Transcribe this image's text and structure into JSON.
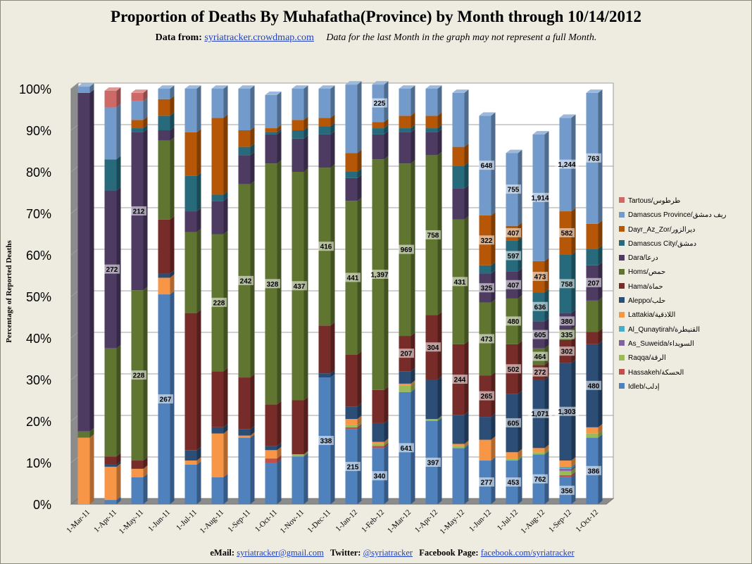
{
  "header": {
    "title": "Proportion of Deaths By Muhafatha(Province) by Month through 10/14/2012",
    "data_from_label": "Data from:",
    "data_from_link": "syriatracker.crowdmap.com",
    "note": "Data for the last Month in the graph may not represent a full Month."
  },
  "footer": {
    "email_label": "eMail:",
    "email": "syriatracker@gmail.com",
    "twitter_label": "Twitter:",
    "twitter": "@syriatracker",
    "facebook_label": "Facebook  Page:",
    "facebook": "facebook.com/syriatracker"
  },
  "chart_data": {
    "type": "bar",
    "stacked": true,
    "percent": true,
    "title": "Proportion of Deaths By Muhafatha(Province) by Month through 10/14/2012",
    "xlabel": "",
    "ylabel": "Percentage of Reported Deaths",
    "ylim": [
      0,
      100
    ],
    "yticks": [
      "0%",
      "10%",
      "20%",
      "30%",
      "40%",
      "50%",
      "60%",
      "70%",
      "80%",
      "90%",
      "100%"
    ],
    "grid": true,
    "legend_position": "right",
    "categories": [
      "1-Mar-11",
      "1-Apr-11",
      "1-May-11",
      "1-Jun-11",
      "1-Jul-11",
      "1-Aug-11",
      "1-Sep-11",
      "1-Oct-11",
      "1-Nov-11",
      "1-Dec-11",
      "1-Jan-12",
      "1-Feb-12",
      "1-Mar-12",
      "1-Apr-12",
      "1-May-12",
      "1-Jun-12",
      "1-Jul-12",
      "1-Aug-12",
      "1-Sep-12",
      "1-Oct-12"
    ],
    "series": [
      {
        "name": "Idleb/إدلب",
        "color": "#4F81BD",
        "values": [
          0,
          1,
          6.5,
          50.5,
          9.5,
          6.5,
          16,
          10,
          11.5,
          30.5,
          18,
          13.5,
          27,
          20,
          13.5,
          10.5,
          10.5,
          12,
          6.5,
          16
        ]
      },
      {
        "name": "Hassakeh/الحسكة",
        "color": "#C0504D",
        "values": [
          0,
          0,
          0,
          0,
          0,
          0,
          0,
          1,
          0,
          0,
          0.5,
          0.5,
          0,
          0,
          0,
          0,
          0,
          0,
          0.5,
          0
        ]
      },
      {
        "name": "Raqqa/الرقة",
        "color": "#9BBB59",
        "values": [
          0,
          0,
          0,
          0,
          0,
          0,
          0,
          0,
          0.5,
          0,
          0.5,
          0.5,
          1.5,
          0.5,
          0.5,
          0,
          0.5,
          0.5,
          1,
          1
        ]
      },
      {
        "name": "As_Suweida/السويداء",
        "color": "#8064A2",
        "values": [
          0,
          0,
          0,
          0,
          0,
          0,
          0,
          0,
          0,
          0,
          0,
          0,
          0,
          0,
          0,
          0,
          0,
          0,
          0.5,
          0
        ]
      },
      {
        "name": "Al_Qunaytirah/القنيطرة",
        "color": "#4BACC6",
        "values": [
          0,
          0,
          0,
          0,
          0,
          0,
          0,
          0,
          0,
          0,
          0,
          0,
          0,
          0,
          0,
          0,
          0,
          0,
          0.5,
          0
        ]
      },
      {
        "name": "Lattakia/اللاذقية",
        "color": "#F79646",
        "values": [
          16,
          8,
          2,
          4,
          1,
          10.5,
          0.5,
          2,
          0,
          0,
          1.5,
          0.5,
          0.5,
          0,
          0.5,
          5,
          1.5,
          1,
          1.5,
          1.5
        ]
      },
      {
        "name": "Aleppo/حلب",
        "color": "#2C4D75",
        "values": [
          0,
          0.5,
          0,
          1,
          2.5,
          1.5,
          1.5,
          1,
          0,
          1,
          3,
          4.5,
          3,
          9.5,
          7,
          5.5,
          14,
          16.5,
          23.5,
          20
        ]
      },
      {
        "name": "Hama/حماة",
        "color": "#772C2A",
        "values": [
          0,
          2,
          2,
          13,
          33,
          13.5,
          12.5,
          10,
          13,
          11.5,
          12.5,
          8,
          8.5,
          15.5,
          17,
          10,
          12,
          3.5,
          5.5,
          3
        ]
      },
      {
        "name": "Homs/حمص",
        "color": "#5F7530",
        "values": [
          1.5,
          26,
          41,
          19,
          19.5,
          33,
          46.5,
          58,
          55,
          38,
          37,
          55.5,
          41.5,
          38.5,
          30,
          17.5,
          11,
          4,
          2.5,
          7.5
        ]
      },
      {
        "name": "Dara/درعا",
        "color": "#4D3B62",
        "values": [
          81.5,
          38,
          38,
          2.5,
          5,
          8,
          7,
          7,
          8,
          8,
          5.5,
          6,
          7.5,
          5.5,
          7.5,
          7,
          6.5,
          6.5,
          4,
          8.5
        ]
      },
      {
        "name": "Damascus City/دمشق",
        "color": "#276A7C",
        "values": [
          0,
          7.5,
          1,
          3.5,
          8.5,
          1.5,
          2,
          0.5,
          2,
          2,
          1.5,
          1.5,
          1,
          1,
          5.5,
          2,
          7.5,
          7,
          14,
          4
        ]
      },
      {
        "name": "Dayr_Az_Zor/ديرالزور",
        "color": "#B65708",
        "values": [
          0,
          0,
          2,
          4,
          10.5,
          18.5,
          4,
          1,
          2.5,
          2,
          4.5,
          1.5,
          3,
          3,
          4.5,
          12,
          3.5,
          7.5,
          10.5,
          6
        ]
      },
      {
        "name": "Damascus Province/ريف دمشق",
        "color": "#729ACA",
        "values": [
          1.5,
          12.5,
          4.5,
          2.5,
          10.5,
          7,
          10,
          8,
          7.5,
          7,
          16.5,
          9,
          6.5,
          6.5,
          13,
          24,
          17.5,
          30.5,
          22.5,
          31.5
        ]
      },
      {
        "name": "Tartous/طرطوس",
        "color": "#CD6A68",
        "values": [
          0,
          4,
          2,
          0,
          0,
          0,
          0,
          0,
          0,
          0,
          0,
          0,
          0,
          0,
          0,
          0,
          0,
          0,
          0,
          0
        ]
      }
    ],
    "data_labels": [
      {
        "category": "1-Apr-11",
        "series": "Dara/درعا",
        "value": 272
      },
      {
        "category": "1-May-11",
        "series": "Homs/حمص",
        "value": 228
      },
      {
        "category": "1-May-11",
        "series": "Dara/درعا",
        "value": 212
      },
      {
        "category": "1-Jun-11",
        "series": "Idleb/إدلب",
        "value": 267
      },
      {
        "category": "1-Aug-11",
        "series": "Homs/حمص",
        "value": 228
      },
      {
        "category": "1-Sep-11",
        "series": "Homs/حمص",
        "value": 242
      },
      {
        "category": "1-Oct-11",
        "series": "Homs/حمص",
        "value": 328
      },
      {
        "category": "1-Nov-11",
        "series": "Homs/حمص",
        "value": 437
      },
      {
        "category": "1-Dec-11",
        "series": "Idleb/إدلب",
        "value": 338
      },
      {
        "category": "1-Dec-11",
        "series": "Homs/حمص",
        "value": 416
      },
      {
        "category": "1-Jan-12",
        "series": "Idleb/إدلب",
        "value": 215
      },
      {
        "category": "1-Jan-12",
        "series": "Homs/حمص",
        "value": 441
      },
      {
        "category": "1-Feb-12",
        "series": "Idleb/إدلب",
        "value": 340
      },
      {
        "category": "1-Feb-12",
        "series": "Homs/حمص",
        "value": "1,397"
      },
      {
        "category": "1-Feb-12",
        "series": "Damascus Province/ريف دمشق",
        "value": 225
      },
      {
        "category": "1-Mar-12",
        "series": "Idleb/إدلب",
        "value": 641
      },
      {
        "category": "1-Mar-12",
        "series": "Hama/حماة",
        "value": 207
      },
      {
        "category": "1-Mar-12",
        "series": "Homs/حمص",
        "value": 969
      },
      {
        "category": "1-Apr-12",
        "series": "Idleb/إدلب",
        "value": 397
      },
      {
        "category": "1-Apr-12",
        "series": "Hama/حماة",
        "value": 304
      },
      {
        "category": "1-Apr-12",
        "series": "Homs/حمص",
        "value": 758
      },
      {
        "category": "1-May-12",
        "series": "Hama/حماة",
        "value": 244
      },
      {
        "category": "1-May-12",
        "series": "Homs/حمص",
        "value": 431
      },
      {
        "category": "1-Jun-12",
        "series": "Idleb/إدلب",
        "value": 277
      },
      {
        "category": "1-Jun-12",
        "series": "Hama/حماة",
        "value": 265
      },
      {
        "category": "1-Jun-12",
        "series": "Homs/حمص",
        "value": 473
      },
      {
        "category": "1-Jun-12",
        "series": "Dara/درعا",
        "value": 325
      },
      {
        "category": "1-Jun-12",
        "series": "Dayr_Az_Zor/ديرالزور",
        "value": 322
      },
      {
        "category": "1-Jun-12",
        "series": "Damascus Province/ريف دمشق",
        "value": 648
      },
      {
        "category": "1-Jul-12",
        "series": "Idleb/إدلب",
        "value": 453
      },
      {
        "category": "1-Jul-12",
        "series": "Aleppo/حلب",
        "value": 605
      },
      {
        "category": "1-Jul-12",
        "series": "Hama/حماة",
        "value": 502
      },
      {
        "category": "1-Jul-12",
        "series": "Homs/حمص",
        "value": 480
      },
      {
        "category": "1-Jul-12",
        "series": "Dara/درعا",
        "value": 407
      },
      {
        "category": "1-Jul-12",
        "series": "Damascus City/دمشق",
        "value": 597
      },
      {
        "category": "1-Jul-12",
        "series": "Dayr_Az_Zor/ديرالزور",
        "value": 407
      },
      {
        "category": "1-Jul-12",
        "series": "Damascus Province/ريف دمشق",
        "value": 755
      },
      {
        "category": "1-Aug-12",
        "series": "Idleb/إدلب",
        "value": 762
      },
      {
        "category": "1-Aug-12",
        "series": "Aleppo/حلب",
        "value": "1,071"
      },
      {
        "category": "1-Aug-12",
        "series": "Hama/حماة",
        "value": 272
      },
      {
        "category": "1-Aug-12",
        "series": "Homs/حمص",
        "value": 464
      },
      {
        "category": "1-Aug-12",
        "series": "Dara/درعا",
        "value": 605
      },
      {
        "category": "1-Aug-12",
        "series": "Damascus City/دمشق",
        "value": 636
      },
      {
        "category": "1-Aug-12",
        "series": "Dayr_Az_Zor/ديرالزور",
        "value": 473
      },
      {
        "category": "1-Aug-12",
        "series": "Damascus Province/ريف دمشق",
        "value": "1,914"
      },
      {
        "category": "1-Sep-12",
        "series": "Idleb/إدلب",
        "value": 356
      },
      {
        "category": "1-Sep-12",
        "series": "Aleppo/حلب",
        "value": "1,303"
      },
      {
        "category": "1-Sep-12",
        "series": "Hama/حماة",
        "value": 302
      },
      {
        "category": "1-Sep-12",
        "series": "Homs/حمص",
        "value": 335
      },
      {
        "category": "1-Sep-12",
        "series": "Dara/درعا",
        "value": 380
      },
      {
        "category": "1-Sep-12",
        "series": "Damascus City/دمشق",
        "value": 758
      },
      {
        "category": "1-Sep-12",
        "series": "Dayr_Az_Zor/ديرالزور",
        "value": 582
      },
      {
        "category": "1-Sep-12",
        "series": "Damascus Province/ريف دمشق",
        "value": "1,244"
      },
      {
        "category": "1-Oct-12",
        "series": "Idleb/إدلب",
        "value": 386
      },
      {
        "category": "1-Oct-12",
        "series": "Aleppo/حلب",
        "value": 480
      },
      {
        "category": "1-Oct-12",
        "series": "Dara/درعا",
        "value": 207
      },
      {
        "category": "1-Oct-12",
        "series": "Damascus Province/ريف دمشق",
        "value": 763
      }
    ]
  }
}
